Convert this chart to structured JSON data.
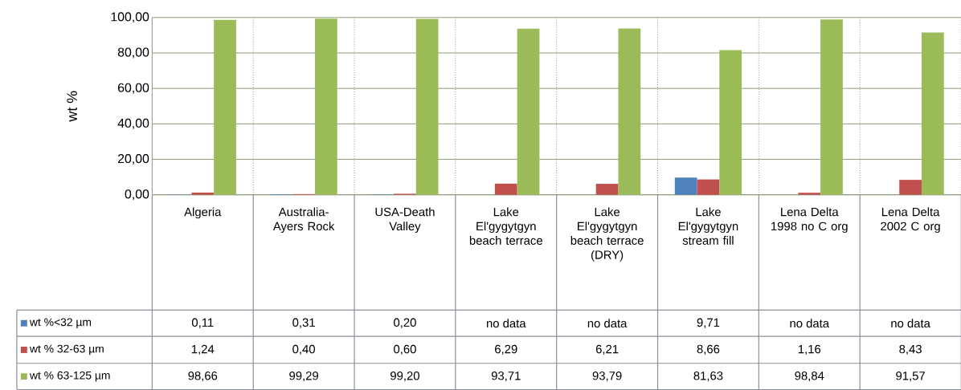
{
  "chart_data": {
    "type": "bar",
    "ylabel": "wt %",
    "categories": [
      "Algeria",
      "Australia-Ayers Rock",
      "USA-Death Valley",
      "Lake El'gygytgyn beach terrace",
      "Lake El'gygytgyn beach terrace (DRY)",
      "Lake El'gygytgyn stream fill",
      "Lena Delta 1998 no C org",
      "Lena Delta 2002 C org"
    ],
    "series": [
      {
        "name": "wt %<32 µm",
        "color": "#4f81bd",
        "values": [
          0.11,
          0.31,
          0.2,
          null,
          null,
          9.71,
          null,
          null
        ],
        "value_labels": [
          "0,11",
          "0,31",
          "0,20",
          "no data",
          "no data",
          "9,71",
          "no data",
          "no data"
        ]
      },
      {
        "name": "wt % 32-63 µm",
        "color": "#c0504d",
        "values": [
          1.24,
          0.4,
          0.6,
          6.29,
          6.21,
          8.66,
          1.16,
          8.43
        ],
        "value_labels": [
          "1,24",
          "0,40",
          "0,60",
          "6,29",
          "6,21",
          "8,66",
          "1,16",
          "8,43"
        ]
      },
      {
        "name": "wt % 63-125 µm",
        "color": "#9bbb59",
        "values": [
          98.66,
          99.29,
          99.2,
          93.71,
          93.79,
          81.63,
          98.84,
          91.57
        ],
        "value_labels": [
          "98,66",
          "99,29",
          "99,20",
          "93,71",
          "93,79",
          "81,63",
          "98,84",
          "91,57"
        ]
      }
    ],
    "ylim": [
      0,
      100
    ],
    "yticks": [
      {
        "value": 0,
        "label": "0,00"
      },
      {
        "value": 20,
        "label": "20,00"
      },
      {
        "value": 40,
        "label": "40,00"
      },
      {
        "value": 60,
        "label": "60,00"
      },
      {
        "value": 80,
        "label": "80,00"
      },
      {
        "value": 100,
        "label": "100,00"
      }
    ],
    "grid": "y",
    "legend": "bottom left"
  }
}
